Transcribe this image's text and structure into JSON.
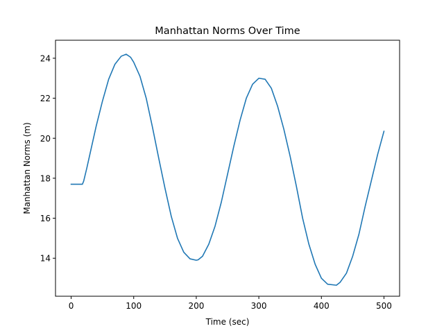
{
  "chart_data": {
    "type": "line",
    "title": "Manhattan Norms Over Time",
    "xlabel": "Time (sec)",
    "ylabel": "Manhattan Norms (m)",
    "xlim": [
      -25,
      525
    ],
    "ylim": [
      12.1,
      24.9
    ],
    "xticks": [
      0,
      100,
      200,
      300,
      400,
      500
    ],
    "yticks": [
      14,
      16,
      18,
      20,
      22,
      24
    ],
    "grid": false,
    "series": [
      {
        "color": "#1f77b4",
        "x": [
          0,
          10,
          18,
          20,
          25,
          30,
          40,
          50,
          60,
          70,
          80,
          88,
          95,
          100,
          110,
          120,
          130,
          140,
          150,
          160,
          170,
          180,
          190,
          200,
          203,
          210,
          220,
          230,
          240,
          250,
          260,
          270,
          280,
          290,
          300,
          310,
          320,
          330,
          340,
          350,
          360,
          370,
          380,
          390,
          400,
          410,
          424,
          430,
          440,
          450,
          460,
          470,
          480,
          490,
          500
        ],
        "y": [
          17.7,
          17.7,
          17.7,
          17.85,
          18.5,
          19.2,
          20.6,
          21.85,
          22.95,
          23.7,
          24.1,
          24.2,
          24.05,
          23.8,
          23.1,
          22.0,
          20.55,
          19.0,
          17.5,
          16.1,
          15.0,
          14.3,
          13.97,
          13.9,
          13.92,
          14.1,
          14.7,
          15.6,
          16.8,
          18.2,
          19.6,
          20.9,
          22.0,
          22.7,
          23.0,
          22.95,
          22.5,
          21.6,
          20.45,
          19.1,
          17.6,
          16.0,
          14.7,
          13.7,
          13.0,
          12.7,
          12.65,
          12.8,
          13.25,
          14.1,
          15.2,
          16.6,
          17.9,
          19.2,
          20.35
        ]
      }
    ]
  }
}
